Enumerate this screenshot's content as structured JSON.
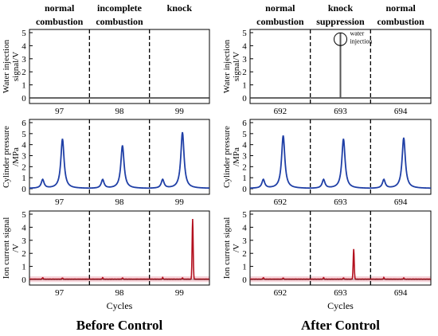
{
  "panels": [
    {
      "key": "before",
      "caption": "Before Control",
      "phase_labels": [
        "normal\ncombustion",
        "incomplete\ncombustion",
        "knock"
      ],
      "xlabel": "Cycles",
      "cycles": [
        "97",
        "98",
        "99"
      ],
      "water": {
        "ylabel": "Water injection\nsignal/V",
        "yticks": [
          "5",
          "4",
          "3",
          "2",
          "1",
          "0"
        ],
        "pulse_cycle_frac": null,
        "pulse_label": ""
      },
      "pressure": {
        "ylabel": "Cylinder pressure\n/MPa",
        "yticks": [
          "6",
          "5",
          "4",
          "3",
          "2",
          "1",
          "0"
        ],
        "peaks_main": [
          4.5,
          3.9,
          5.1
        ]
      },
      "ion": {
        "ylabel": "Ion current signal\n/V",
        "yticks": [
          "5",
          "4",
          "3",
          "2",
          "1",
          "0"
        ],
        "spike": {
          "cycle_index": 2,
          "value": 4.6
        }
      }
    },
    {
      "key": "after",
      "caption": "After Control",
      "phase_labels": [
        "normal\ncombustion",
        "knock\nsuppression",
        "normal\ncombustion"
      ],
      "xlabel": "Cycles",
      "cycles": [
        "692",
        "693",
        "694"
      ],
      "water": {
        "ylabel": "Water injection\nsignal/V",
        "yticks": [
          "5",
          "4",
          "3",
          "2",
          "1",
          "0"
        ],
        "pulse_cycle_frac": 0.5,
        "pulse_label": "water\ninjection"
      },
      "pressure": {
        "ylabel": "Cylinder pressure\n/MPa",
        "yticks": [
          "6",
          "5",
          "4",
          "3",
          "2",
          "1",
          "0"
        ],
        "peaks_main": [
          4.8,
          4.5,
          4.6
        ]
      },
      "ion": {
        "ylabel": "Ion current signal\n/V",
        "yticks": [
          "5",
          "4",
          "3",
          "2",
          "1",
          "0"
        ],
        "spike": {
          "cycle_index": 1,
          "value": 2.3
        }
      }
    }
  ],
  "colors": {
    "pressure": "#1f3fa6",
    "ion": "#b3101e",
    "ion_band": "#f7d6dc",
    "axis": "#000000",
    "divider": "#000000"
  },
  "chart_data": [
    {
      "type": "line",
      "title": "Before Control",
      "xlabel": "Cycles",
      "categories": [
        "97",
        "98",
        "99"
      ],
      "series": [
        {
          "name": "",
          "subplot": "Water injection signal/V",
          "values": [
            0,
            0,
            0
          ]
        },
        {
          "name": "",
          "subplot": "Cylinder pressure /MPa",
          "values": [
            4.5,
            3.9,
            5.1
          ]
        },
        {
          "name": "",
          "subplot": "Ion current signal /V",
          "values": [
            0.1,
            0.1,
            4.6
          ]
        }
      ],
      "ylim_water": [
        0,
        5
      ],
      "ylim_pressure": [
        0,
        6
      ],
      "ylim_ion": [
        0,
        5
      ]
    },
    {
      "type": "line",
      "title": "After Control",
      "xlabel": "Cycles",
      "categories": [
        "692",
        "693",
        "694"
      ],
      "series": [
        {
          "name": "",
          "subplot": "Water injection signal/V",
          "values": [
            0,
            5,
            0
          ]
        },
        {
          "name": "",
          "subplot": "Cylinder pressure /MPa",
          "values": [
            4.8,
            4.5,
            4.6
          ]
        },
        {
          "name": "",
          "subplot": "Ion current signal /V",
          "values": [
            0.1,
            2.3,
            0.1
          ]
        }
      ],
      "ylim_water": [
        0,
        5
      ],
      "ylim_pressure": [
        0,
        6
      ],
      "ylim_ion": [
        0,
        5
      ]
    }
  ]
}
